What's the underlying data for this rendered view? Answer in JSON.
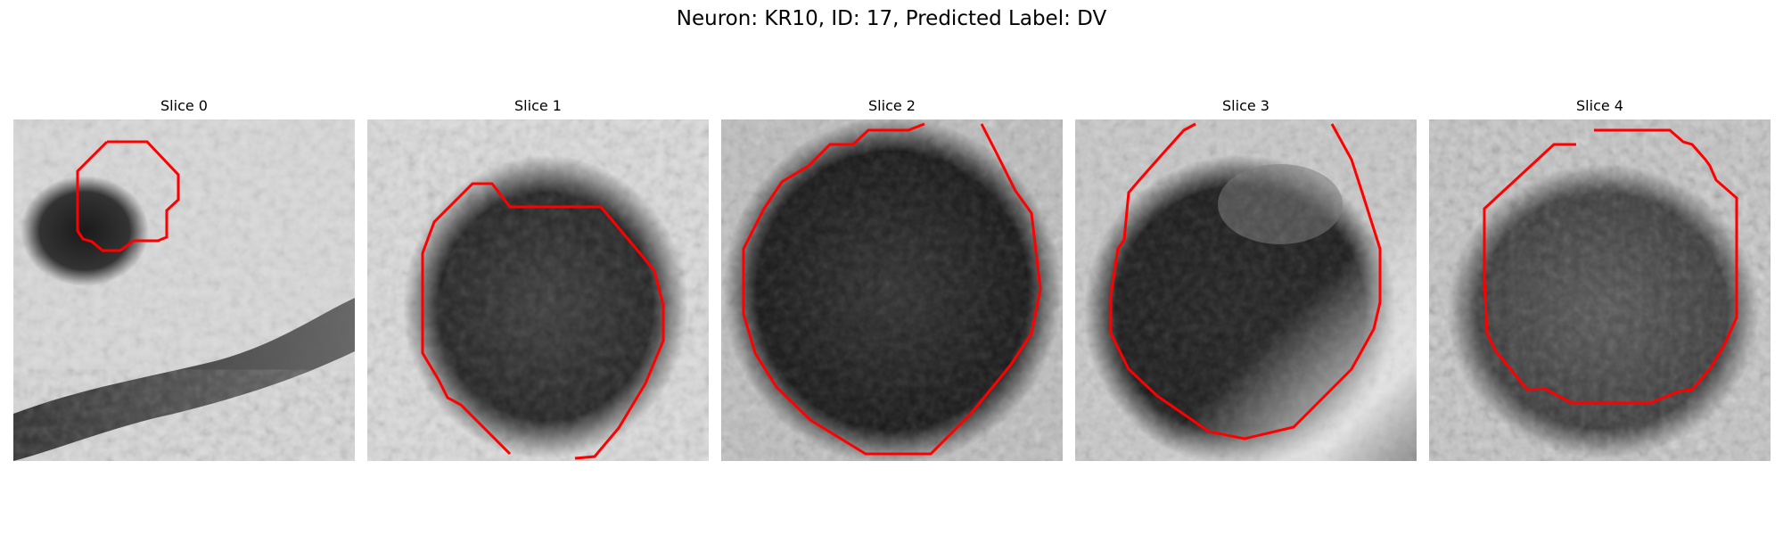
{
  "figure": {
    "title": "Neuron: KR10, ID: 17, Predicted Label: DV"
  },
  "colors": {
    "contour": "#ff0000"
  },
  "panels": [
    {
      "title": "Slice 0",
      "scene": "small dark round cell at upper-left with bright background and a dark diagonal band at the bottom"
    },
    {
      "title": "Slice 1",
      "scene": "large dark oval cell centered, light surroundings"
    },
    {
      "title": "Slice 2",
      "scene": "very dark large round cell filling most of the frame"
    },
    {
      "title": "Slice 3",
      "scene": "dark round cell with lighter patch at top, bright rim at lower right"
    },
    {
      "title": "Slice 4",
      "scene": "mid-gray textured round cell with lighter edges"
    }
  ]
}
